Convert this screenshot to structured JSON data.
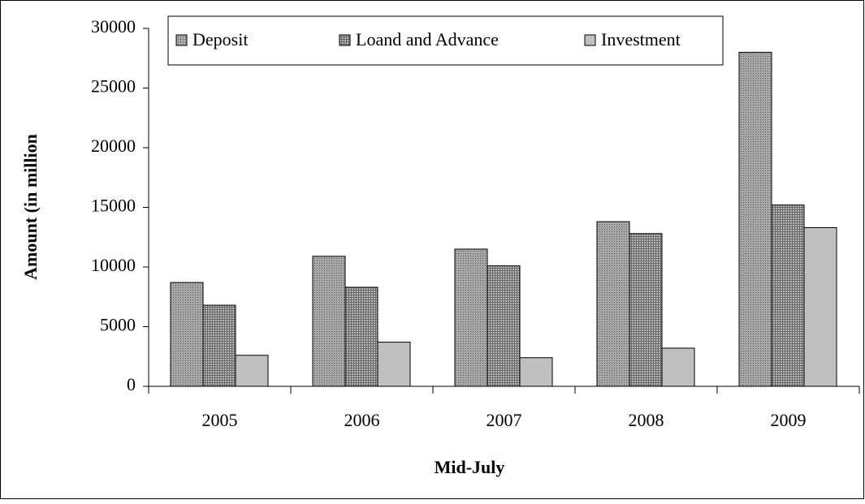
{
  "chart_data": {
    "type": "bar",
    "x_label": "Mid-July",
    "y_label": "Amount (in million",
    "categories": [
      "2005",
      "2006",
      "2007",
      "2008",
      "2009"
    ],
    "series": [
      {
        "name": "Deposit",
        "color": "#a8a8a8",
        "values": [
          8700,
          10900,
          11500,
          13800,
          28000
        ]
      },
      {
        "name": "Loand and Advance",
        "color": "#b8b8b8",
        "values": [
          6800,
          8300,
          10100,
          12800,
          15200
        ]
      },
      {
        "name": "Investment",
        "color": "#c0c0c0",
        "values": [
          2600,
          3700,
          2400,
          3200,
          13300
        ]
      }
    ],
    "ylim": [
      0,
      30000
    ],
    "yticks": [
      0,
      5000,
      10000,
      15000,
      20000,
      25000,
      30000
    ],
    "grid": false,
    "legend": "top"
  }
}
